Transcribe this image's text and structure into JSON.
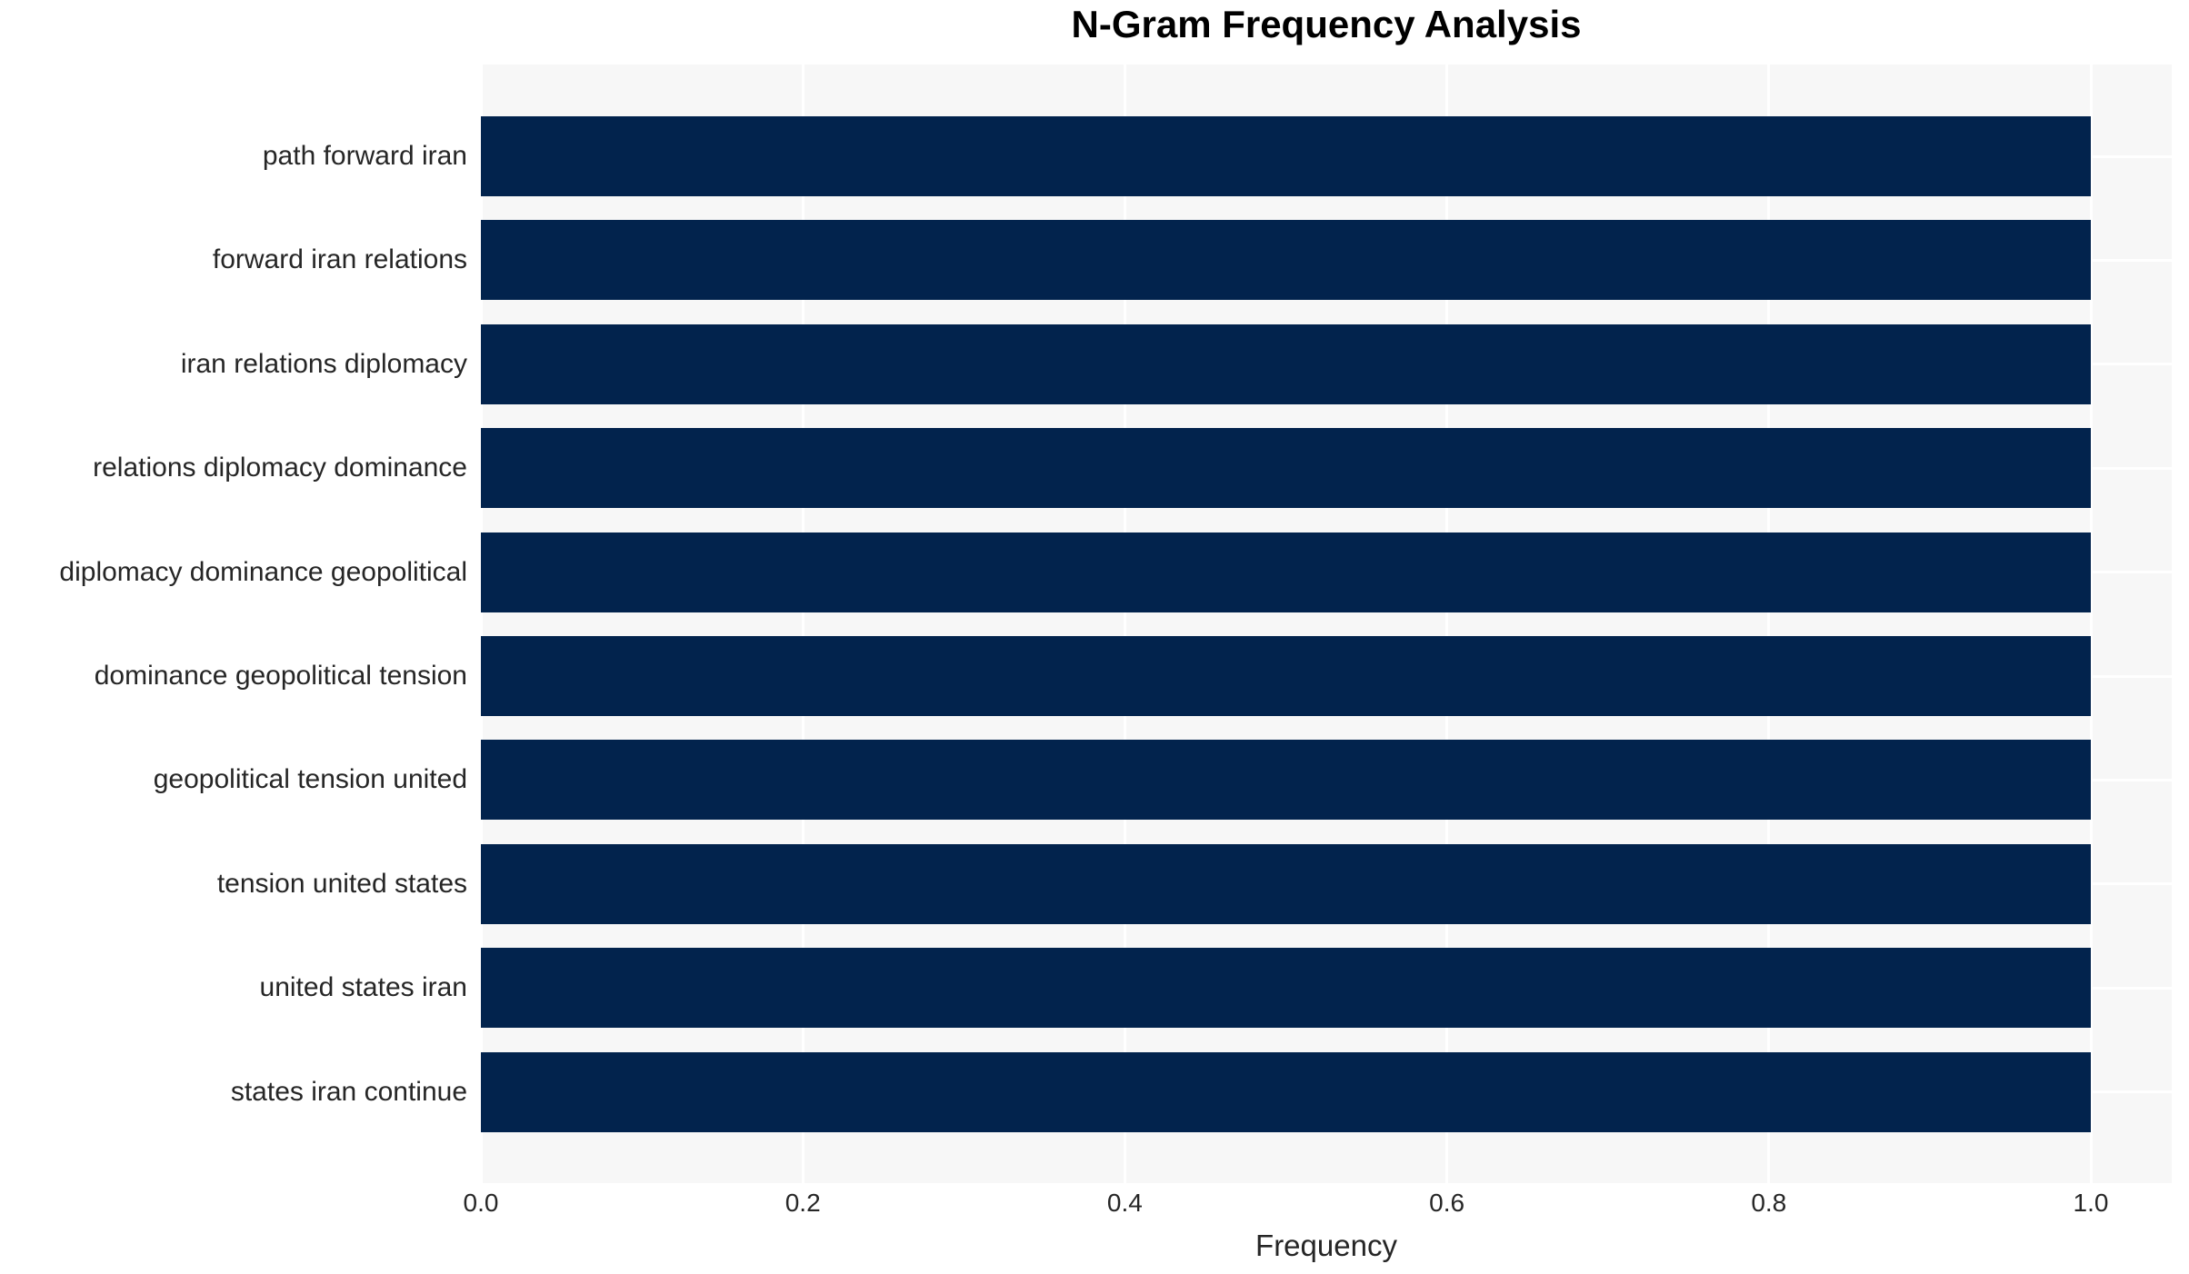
{
  "chart_data": {
    "type": "bar",
    "orientation": "horizontal",
    "title": "N-Gram Frequency Analysis",
    "xlabel": "Frequency",
    "ylabel": "",
    "categories": [
      "path forward iran",
      "forward iran relations",
      "iran relations diplomacy",
      "relations diplomacy dominance",
      "diplomacy dominance geopolitical",
      "dominance geopolitical tension",
      "geopolitical tension united",
      "tension united states",
      "united states iran",
      "states iran continue"
    ],
    "values": [
      1.0,
      1.0,
      1.0,
      1.0,
      1.0,
      1.0,
      1.0,
      1.0,
      1.0,
      1.0
    ],
    "xlim": [
      0.0,
      1.05
    ],
    "xticks": [
      0.0,
      0.2,
      0.4,
      0.6,
      0.8,
      1.0
    ],
    "xtick_labels": [
      "0.0",
      "0.2",
      "0.4",
      "0.6",
      "0.8",
      "1.0"
    ],
    "grid": true,
    "grid_axis": "both",
    "legend": false,
    "colors": {
      "bar": "#02234d",
      "plot_background": "#f7f7f7",
      "figure_background": "#ffffff",
      "gridline": "#ffffff",
      "tick_text": "#262626",
      "title_text": "#000000"
    }
  }
}
